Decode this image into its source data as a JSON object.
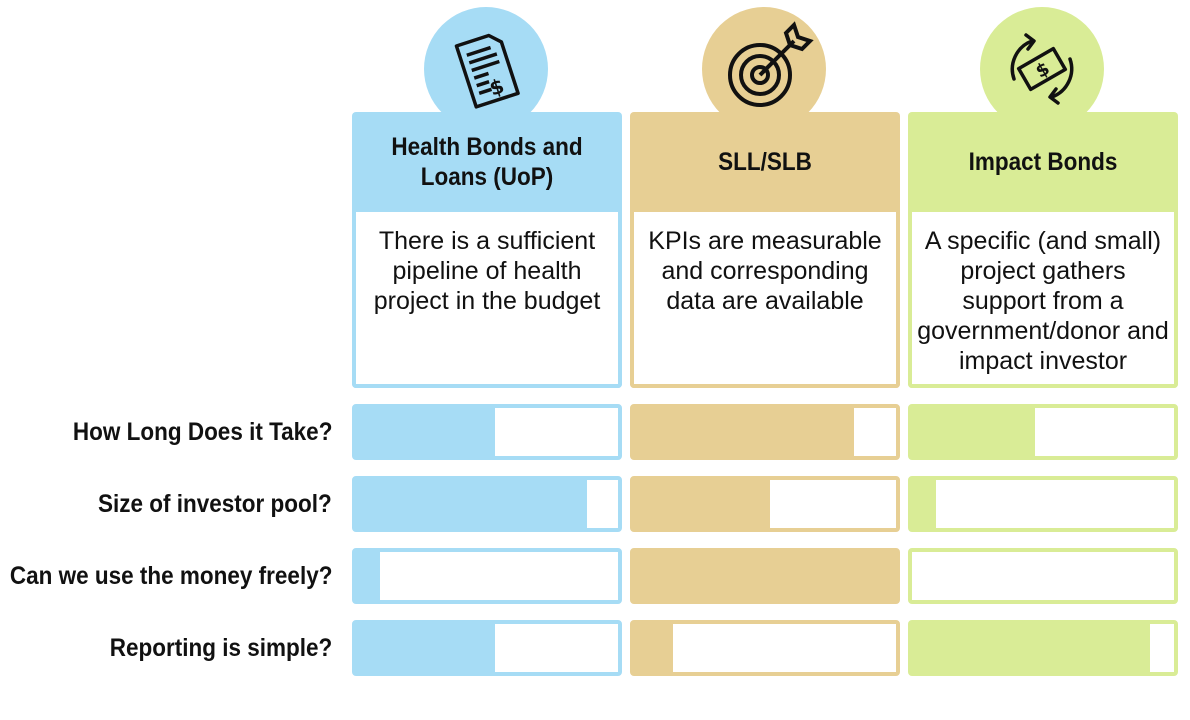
{
  "row_labels": [
    "How Long Does it Take?",
    "Size of investor pool?",
    "Can we use the money freely?",
    "Reporting is simple?"
  ],
  "columns": [
    {
      "title_line1": "Health Bonds and",
      "title_line2": "Loans (UoP)",
      "icon": "invoice-dollar-icon",
      "color": "#a6dcf5",
      "description": "There is a sufficient pipeline of health project in the budget",
      "bar_levels": [
        0.53,
        0.88,
        0.09,
        0.53
      ]
    },
    {
      "title_line1": "SLL/SLB",
      "title_line2": "",
      "icon": "target-arrow-icon",
      "color": "#e7cf94",
      "description": "KPIs are measurable and corresponding data are available",
      "bar_levels": [
        0.84,
        0.52,
        1.0,
        0.15
      ]
    },
    {
      "title_line1": "Impact Bonds",
      "title_line2": "",
      "icon": "money-cycle-icon",
      "color": "#d9ec96",
      "description": "A specific (and small) project gathers support from a government/donor and impact investor",
      "bar_levels": [
        0.47,
        0.09,
        0.0,
        0.91
      ]
    }
  ]
}
